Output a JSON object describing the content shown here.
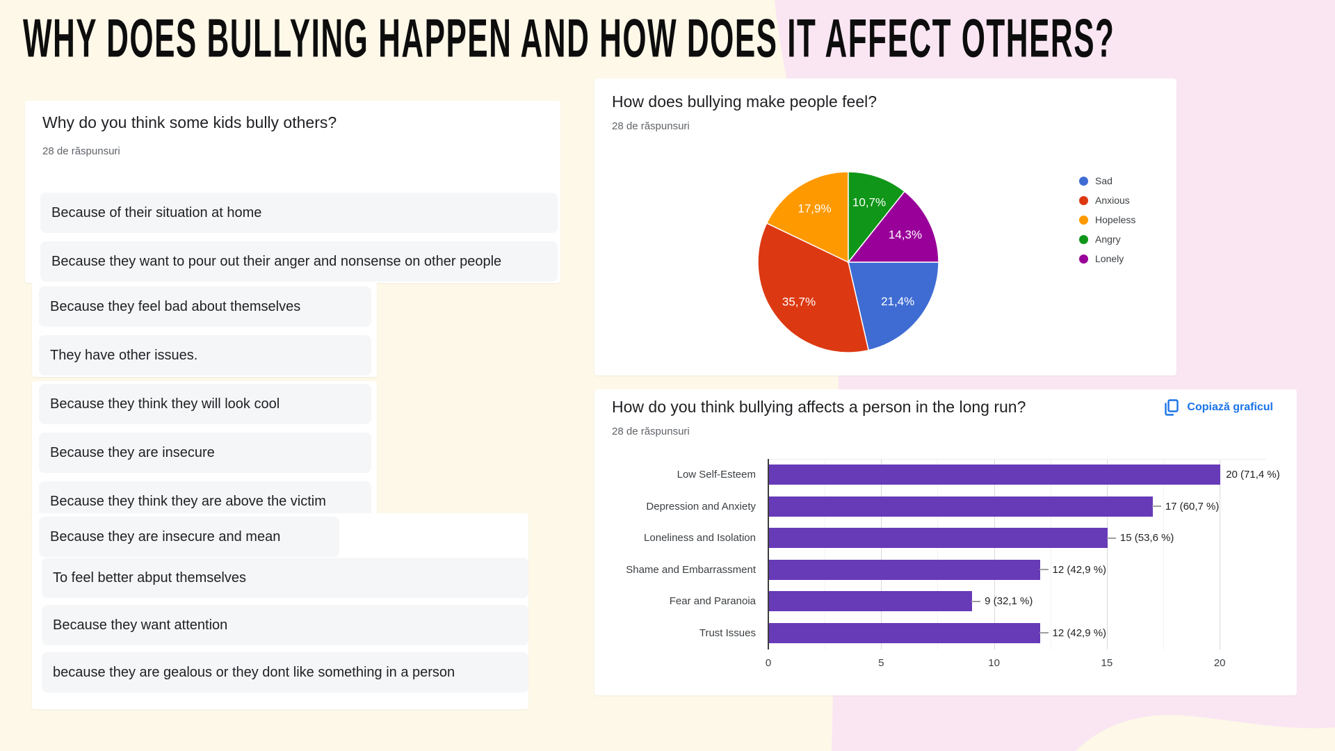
{
  "header": {
    "title": "WHY DOES BULLYING HAPPEN AND HOW DOES IT AFFECT OTHERS?"
  },
  "colors": {
    "bg_cream": "#FDF8E8",
    "bg_pink": "#FAE6F3",
    "card": "#FFFFFF",
    "row_bg": "#F5F6F8",
    "text_dark": "#202124",
    "text_gray": "#5F6368",
    "link_blue": "#1A73E8",
    "axis_line": "#3C3C3C",
    "bar_purple": "#673AB7"
  },
  "open_question": {
    "title": "Why do you think some kids bully others?",
    "count_label": "28 de răspunsuri",
    "responses": [
      "Because of their situation at home",
      "Because they want to pour out their anger and nonsense on other people",
      "Because they feel bad about themselves",
      "They have other issues.",
      "Because they think they will look cool",
      "Because they are insecure",
      "Because they think they are above the victim",
      "Because they are insecure and mean",
      "To feel better abput themselves",
      "Because they want attention",
      "because they are gealous or they dont like something in a person"
    ]
  },
  "chart_data": [
    {
      "type": "pie",
      "title": "How does bullying make people feel?",
      "subtitle": "28 de răspunsuri",
      "legend_position": "right",
      "start_angle_from_top_deg": 90,
      "slices": [
        {
          "label": "Sad",
          "value": 21.4,
          "display": "21,4%",
          "color": "#3E6CD3"
        },
        {
          "label": "Anxious",
          "value": 35.7,
          "display": "35,7%",
          "color": "#DC3912"
        },
        {
          "label": "Hopeless",
          "value": 17.9,
          "display": "17,9%",
          "color": "#FF9900"
        },
        {
          "label": "Angry",
          "value": 10.7,
          "display": "10,7%",
          "color": "#109618"
        },
        {
          "label": "Lonely",
          "value": 14.3,
          "display": "14,3%",
          "color": "#990099"
        }
      ]
    },
    {
      "type": "bar",
      "orientation": "horizontal",
      "title": "How do you think bullying affects a person in the long run?",
      "subtitle": "28 de răspunsuri",
      "copy_button_label": "Copiază graficul",
      "categories": [
        "Low Self-Esteem",
        "Depression and Anxiety",
        "Loneliness and Isolation",
        "Shame and Embarrassment",
        "Fear and Paranoia",
        "Trust Issues"
      ],
      "values": [
        20,
        17,
        15,
        12,
        9,
        12
      ],
      "value_labels": [
        "20 (71,4 %)",
        "17 (60,7 %)",
        "15 (53,6 %)",
        "12 (42,9 %)",
        "9 (32,1 %)",
        "12 (42,9 %)"
      ],
      "xticks": [
        0,
        5,
        10,
        15,
        20
      ],
      "xlim": [
        0,
        22
      ],
      "bar_color": "#673AB7",
      "grid": true
    }
  ]
}
